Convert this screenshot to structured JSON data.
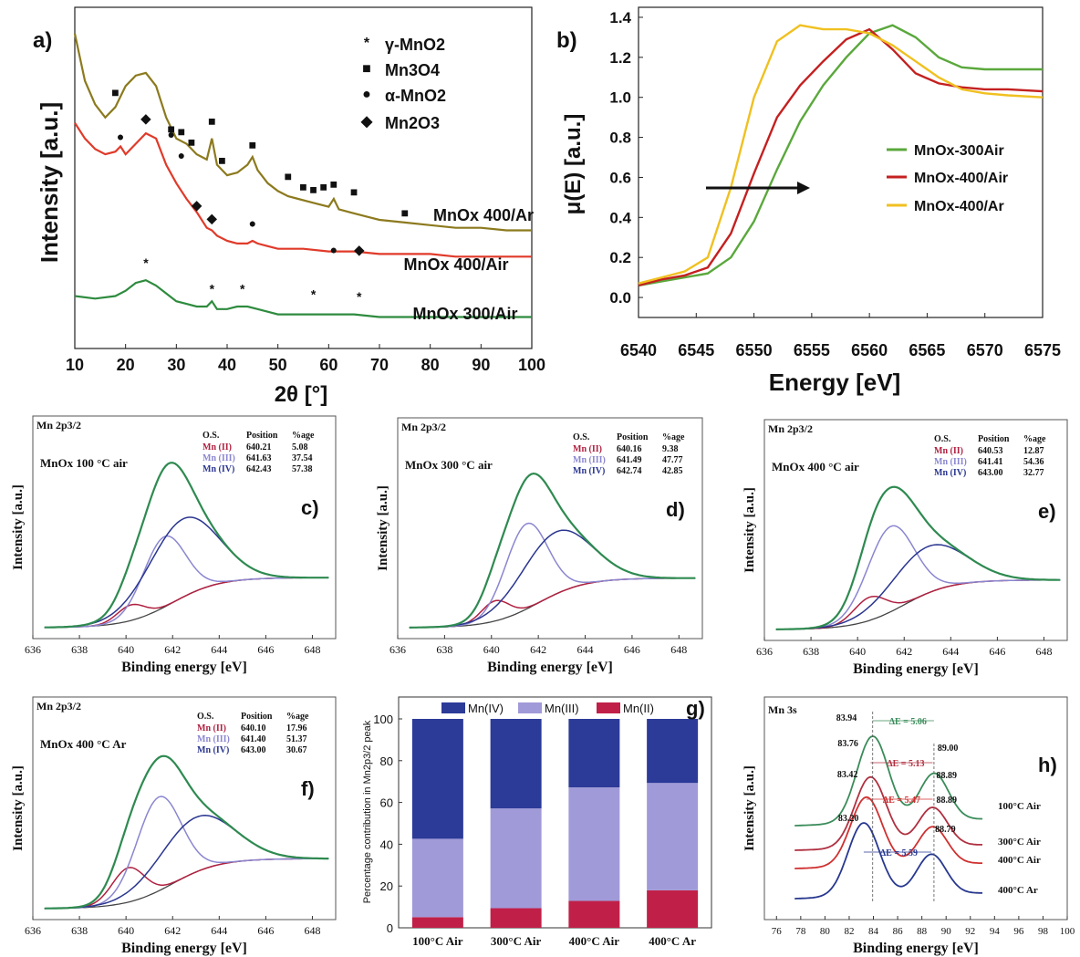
{
  "chart_data": [
    {
      "panel": "a)",
      "type": "line",
      "xlabel": "2θ [°]",
      "ylabel": "Intensity [a.u.]",
      "xlim": [
        10,
        100
      ],
      "xticks": [
        "10",
        "20",
        "30",
        "40",
        "50",
        "60",
        "70",
        "80",
        "90",
        "100"
      ],
      "legend": [
        {
          "symbol": "*",
          "label": "γ-MnO2"
        },
        {
          "symbol": "■",
          "label": "Mn3O4"
        },
        {
          "symbol": "●",
          "label": "α-MnO2"
        },
        {
          "symbol": "◆",
          "label": "Mn2O3"
        }
      ],
      "series": [
        {
          "name": "MnOx 400/Ar",
          "color": "#8c7a1e",
          "x": [
            10,
            12,
            14,
            16,
            18,
            20,
            22,
            24,
            26,
            28,
            30,
            32,
            34,
            36,
            37,
            38,
            40,
            42,
            44,
            45,
            46,
            48,
            50,
            52,
            54,
            56,
            58,
            60,
            61,
            62,
            64,
            66,
            68,
            70,
            75,
            80,
            85,
            90,
            95,
            100
          ],
          "y": [
            0.9,
            0.72,
            0.63,
            0.58,
            0.62,
            0.7,
            0.74,
            0.75,
            0.7,
            0.58,
            0.5,
            0.48,
            0.44,
            0.42,
            0.5,
            0.4,
            0.36,
            0.37,
            0.4,
            0.43,
            0.38,
            0.33,
            0.3,
            0.28,
            0.27,
            0.26,
            0.25,
            0.24,
            0.27,
            0.23,
            0.22,
            0.21,
            0.2,
            0.19,
            0.18,
            0.17,
            0.16,
            0.16,
            0.15,
            0.15
          ]
        },
        {
          "name": "MnOx 400/Air",
          "color": "#e03a2a",
          "x": [
            10,
            12,
            14,
            16,
            18,
            19,
            20,
            22,
            24,
            26,
            28,
            30,
            32,
            34,
            36,
            37,
            38,
            40,
            42,
            44,
            45,
            46,
            48,
            50,
            55,
            60,
            65,
            70,
            75,
            80,
            85,
            90,
            95,
            100
          ],
          "y": [
            0.56,
            0.5,
            0.46,
            0.44,
            0.45,
            0.47,
            0.44,
            0.48,
            0.52,
            0.5,
            0.4,
            0.33,
            0.27,
            0.22,
            0.16,
            0.15,
            0.13,
            0.11,
            0.1,
            0.1,
            0.11,
            0.1,
            0.09,
            0.08,
            0.08,
            0.07,
            0.07,
            0.06,
            0.06,
            0.06,
            0.05,
            0.05,
            0.05,
            0.05
          ]
        },
        {
          "name": "MnOx 300/Air",
          "color": "#2e8b3e",
          "x": [
            10,
            14,
            18,
            20,
            22,
            24,
            26,
            28,
            30,
            32,
            34,
            36,
            37,
            38,
            40,
            42,
            44,
            46,
            48,
            50,
            55,
            60,
            65,
            70,
            80,
            90,
            100
          ],
          "y": [
            -0.1,
            -0.11,
            -0.1,
            -0.08,
            -0.05,
            -0.04,
            -0.06,
            -0.09,
            -0.12,
            -0.13,
            -0.14,
            -0.14,
            -0.12,
            -0.15,
            -0.15,
            -0.14,
            -0.14,
            -0.15,
            -0.16,
            -0.17,
            -0.17,
            -0.17,
            -0.17,
            -0.18,
            -0.18,
            -0.18,
            -0.18
          ]
        }
      ]
    },
    {
      "panel": "b)",
      "type": "line",
      "xlabel": "Energy [eV]",
      "ylabel": "μ(E) [a.u.]",
      "xlim": [
        6540,
        6575
      ],
      "ylim": [
        0,
        1.4
      ],
      "xticks": [
        "6540",
        "6545",
        "6550",
        "6555",
        "6560",
        "6565",
        "6570",
        "6575"
      ],
      "yticks": [
        "0.0",
        "0.2",
        "0.4",
        "0.6",
        "0.8",
        "1.0",
        "1.2",
        "1.4"
      ],
      "series": [
        {
          "name": "MnOx-300Air",
          "color": "#5aa83c",
          "x": [
            6540,
            6542,
            6544,
            6546,
            6548,
            6550,
            6552,
            6554,
            6556,
            6558,
            6560,
            6562,
            6564,
            6566,
            6568,
            6570,
            6572,
            6575
          ],
          "y": [
            0.06,
            0.08,
            0.1,
            0.12,
            0.2,
            0.38,
            0.64,
            0.88,
            1.06,
            1.2,
            1.32,
            1.36,
            1.3,
            1.2,
            1.15,
            1.14,
            1.14,
            1.14
          ]
        },
        {
          "name": "MnOx-400/Air",
          "color": "#c42020",
          "x": [
            6540,
            6542,
            6544,
            6546,
            6548,
            6550,
            6552,
            6554,
            6556,
            6558,
            6560,
            6562,
            6564,
            6566,
            6568,
            6570,
            6572,
            6575
          ],
          "y": [
            0.06,
            0.09,
            0.11,
            0.15,
            0.32,
            0.62,
            0.9,
            1.06,
            1.18,
            1.29,
            1.34,
            1.24,
            1.12,
            1.07,
            1.05,
            1.04,
            1.04,
            1.03
          ]
        },
        {
          "name": "MnOx-400/Ar",
          "color": "#f0c020",
          "x": [
            6540,
            6542,
            6544,
            6546,
            6548,
            6550,
            6552,
            6554,
            6556,
            6558,
            6560,
            6562,
            6564,
            6566,
            6568,
            6570,
            6572,
            6575
          ],
          "y": [
            0.07,
            0.1,
            0.13,
            0.2,
            0.55,
            1.0,
            1.28,
            1.36,
            1.34,
            1.34,
            1.32,
            1.26,
            1.18,
            1.1,
            1.04,
            1.02,
            1.01,
            1.0
          ]
        }
      ]
    },
    {
      "panel": "c)",
      "type": "line",
      "header": "Mn 2p3/2",
      "sample": "MnOx 100 °C air",
      "xlabel": "Binding energy [eV]",
      "ylabel": "Intensity [a.u.]",
      "xlim": [
        636,
        649
      ],
      "xticks": [
        "636",
        "638",
        "640",
        "642",
        "644",
        "646",
        "648"
      ],
      "table": {
        "headers": [
          "O.S.",
          "Position",
          "%age"
        ],
        "rows": [
          [
            "Mn (II)",
            "640.21",
            "5.08"
          ],
          [
            "Mn (III)",
            "641.63",
            "37.54"
          ],
          [
            "Mn (IV)",
            "642.43",
            "57.38"
          ]
        ]
      },
      "components": [
        {
          "center": 640.21,
          "height": 0.1,
          "width": 0.6
        },
        {
          "center": 641.63,
          "height": 0.45,
          "width": 0.9
        },
        {
          "center": 642.43,
          "height": 0.5,
          "width": 1.5
        }
      ],
      "bg_low": 0.02,
      "bg_high": 0.34
    },
    {
      "panel": "d)",
      "type": "line",
      "header": "Mn 2p3/2",
      "sample": "MnOx 300 °C air",
      "xlabel": "Binding energy [eV]",
      "ylabel": "Intensity [a.u.]",
      "xlim": [
        636,
        649
      ],
      "xticks": [
        "636",
        "638",
        "640",
        "642",
        "644",
        "646",
        "648"
      ],
      "table": {
        "headers": [
          "O.S.",
          "Position",
          "%age"
        ],
        "rows": [
          [
            "Mn (II)",
            "640.16",
            "9.38"
          ],
          [
            "Mn (III)",
            "641.49",
            "47.77"
          ],
          [
            "Mn (IV)",
            "642.74",
            "42.85"
          ]
        ]
      },
      "components": [
        {
          "center": 640.16,
          "height": 0.13,
          "width": 0.6
        },
        {
          "center": 641.49,
          "height": 0.55,
          "width": 0.9
        },
        {
          "center": 642.74,
          "height": 0.4,
          "width": 1.5
        }
      ],
      "bg_low": 0.02,
      "bg_high": 0.34
    },
    {
      "panel": "e)",
      "type": "line",
      "header": "Mn 2p3/2",
      "sample": "MnOx 400 °C air",
      "xlabel": "Binding energy [eV]",
      "ylabel": "Intensity [a.u.]",
      "xlim": [
        636,
        649
      ],
      "xticks": [
        "636",
        "638",
        "640",
        "642",
        "644",
        "646",
        "648"
      ],
      "table": {
        "headers": [
          "O.S.",
          "Position",
          "%age"
        ],
        "rows": [
          [
            "Mn (II)",
            "640.53",
            "12.87"
          ],
          [
            "Mn (III)",
            "641.41",
            "54.36"
          ],
          [
            "Mn (IV)",
            "643.00",
            "32.77"
          ]
        ]
      },
      "components": [
        {
          "center": 640.53,
          "height": 0.15,
          "width": 0.7
        },
        {
          "center": 641.41,
          "height": 0.55,
          "width": 1.0
        },
        {
          "center": 643.0,
          "height": 0.3,
          "width": 1.6
        }
      ],
      "bg_low": 0.02,
      "bg_high": 0.34
    },
    {
      "panel": "f)",
      "type": "line",
      "header": "Mn 2p3/2",
      "sample": "MnOx 400 °C Ar",
      "xlabel": "Binding energy [eV]",
      "ylabel": "Intensity [a.u.]",
      "xlim": [
        636,
        649
      ],
      "xticks": [
        "636",
        "638",
        "640",
        "642",
        "644",
        "646",
        "648"
      ],
      "table": {
        "headers": [
          "O.S.",
          "Position",
          "%age"
        ],
        "rows": [
          [
            "Mn (II)",
            "640.10",
            "17.96"
          ],
          [
            "Mn (III)",
            "641.40",
            "51.37"
          ],
          [
            "Mn (IV)",
            "643.00",
            "30.67"
          ]
        ]
      },
      "components": [
        {
          "center": 640.1,
          "height": 0.22,
          "width": 0.7
        },
        {
          "center": 641.4,
          "height": 0.6,
          "width": 0.95
        },
        {
          "center": 643.0,
          "height": 0.35,
          "width": 1.6
        }
      ],
      "bg_low": 0.02,
      "bg_high": 0.34
    },
    {
      "panel": "g)",
      "type": "bar",
      "stacked": true,
      "ylabel": "Percentage contribution in Mn2p3/2 peak",
      "ylim": [
        0,
        100
      ],
      "yticks": [
        "0",
        "20",
        "40",
        "60",
        "80",
        "100"
      ],
      "categories": [
        "100°C  Air",
        "300°C  Air",
        "400°C  Air",
        "400°C  Ar"
      ],
      "legend_position": "top",
      "series": [
        {
          "name": "Mn(II)",
          "color": "#c02048",
          "values": [
            5.08,
            9.38,
            12.87,
            17.96
          ]
        },
        {
          "name": "Mn(III)",
          "color": "#a09ad8",
          "values": [
            37.54,
            47.77,
            54.36,
            51.37
          ]
        },
        {
          "name": "Mn(IV)",
          "color": "#2c3a98",
          "values": [
            57.38,
            42.85,
            32.77,
            30.67
          ]
        }
      ]
    },
    {
      "panel": "h)",
      "type": "line",
      "header": "Mn 3s",
      "xlabel": "Binding energy [eV]",
      "ylabel": "Intensity [a.u.]",
      "xlim": [
        75,
        100
      ],
      "xticks": [
        "76",
        "78",
        "80",
        "82",
        "84",
        "86",
        "88",
        "90",
        "92",
        "94",
        "96",
        "98",
        "100"
      ],
      "series": [
        {
          "name": "100°C Air",
          "color": "#3a8c5a",
          "peak1": 83.94,
          "peak2": 89.0,
          "delta": "ΔE = 5.06",
          "p1_label": "83.94",
          "p2_label": "89.00"
        },
        {
          "name": "300°C Air",
          "color": "#b03040",
          "peak1": 83.76,
          "peak2": 88.89,
          "delta": "ΔE = 5.13",
          "p1_label": "83.76",
          "p2_label": "88.89"
        },
        {
          "name": "400°C Air",
          "color": "#d03030",
          "peak1": 83.42,
          "peak2": 88.89,
          "delta": "ΔE = 5.47",
          "p1_label": "83.42",
          "p2_label": "88.89"
        },
        {
          "name": "400°C Ar",
          "color": "#283890",
          "peak1": 83.2,
          "peak2": 88.79,
          "delta": "ΔE = 5.59",
          "p1_label": "83.20",
          "p2_label": "88.79"
        }
      ]
    }
  ]
}
